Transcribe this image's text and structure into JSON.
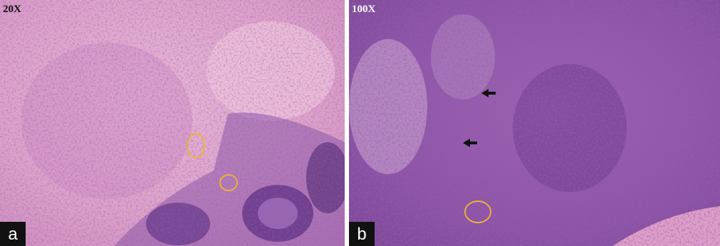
{
  "panels": [
    {
      "magnification": "20X",
      "label": "a"
    },
    {
      "magnification": "100X",
      "label": "b"
    }
  ]
}
